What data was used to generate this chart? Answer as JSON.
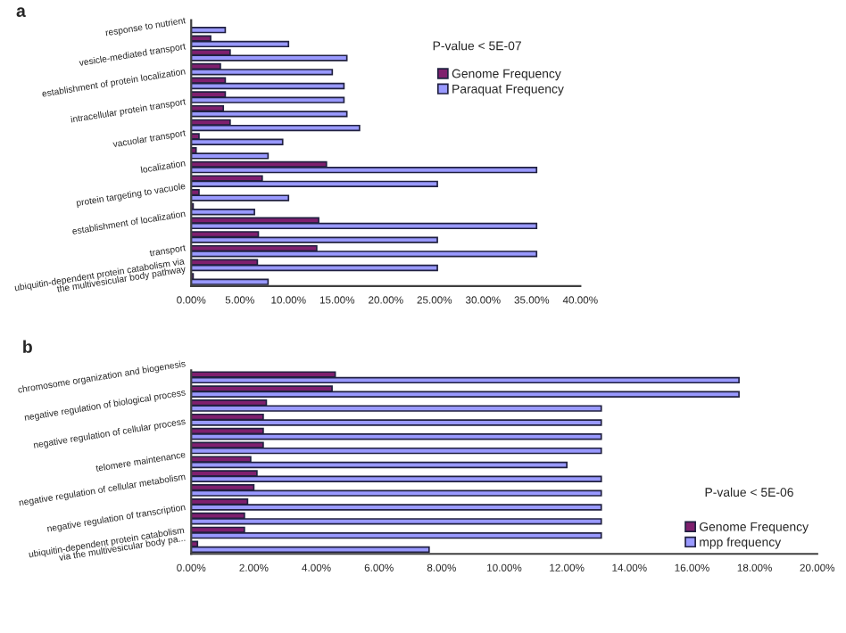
{
  "chart_data": [
    {
      "type": "bar",
      "orientation": "horizontal",
      "categories": [
        "response to nutrient",
        null,
        "vesicle-mediated transport",
        null,
        "establishment of protein localization",
        null,
        "intracellular protein transport",
        null,
        "vacuolar transport",
        null,
        "localization",
        null,
        "protein targeting to vacuole",
        null,
        "establishment of localization",
        null,
        "transport",
        null,
        "ubiquitin-dependent protein catabolism via\nthe multivesicular body pathway"
      ],
      "series": [
        {
          "name": "Genome Frequency",
          "color": "#7f1f6e",
          "values": [
            null,
            2.0,
            4.0,
            3.0,
            3.5,
            3.5,
            3.3,
            4.0,
            0.8,
            0.5,
            13.9,
            7.3,
            0.8,
            0.2,
            13.1,
            6.9,
            12.9,
            6.8,
            0.2
          ]
        },
        {
          "name": "Paraquat Frequency",
          "color": "#9999ff",
          "values": [
            3.5,
            10.0,
            16.0,
            14.5,
            15.7,
            15.7,
            16.0,
            17.3,
            9.4,
            7.9,
            35.5,
            25.3,
            10.0,
            6.5,
            35.5,
            25.3,
            35.5,
            25.3,
            7.9
          ]
        }
      ],
      "xlim": [
        0,
        40
      ],
      "xticks": [
        {
          "value": 0,
          "label": "0.00%"
        },
        {
          "value": 5,
          "label": "5.00%"
        },
        {
          "value": 10,
          "label": "10.00%"
        },
        {
          "value": 15,
          "label": "15.00%"
        },
        {
          "value": 20,
          "label": "20.00%"
        },
        {
          "value": 25,
          "label": "25.00%"
        },
        {
          "value": 30,
          "label": "30.00%"
        },
        {
          "value": 35,
          "label": "35.00%"
        },
        {
          "value": 40,
          "label": "40.00%"
        }
      ],
      "annotations": [
        "a",
        "P-value < 5E-07"
      ],
      "legend": "top right",
      "grid": false
    },
    {
      "type": "bar",
      "orientation": "horizontal",
      "categories": [
        "chromosome organization and biogenesis",
        null,
        "negative regulation of biological process",
        null,
        "negative regulation of cellular process",
        null,
        "telomere maintenance",
        null,
        "negative regulation of cellular metabolism",
        null,
        "negative regulation of transcription",
        null,
        "ubiquitin-dependent protein catabolism\nvia the multivesicular body pa..."
      ],
      "series": [
        {
          "name": "Genome Frequency",
          "color": "#7f1f6e",
          "values": [
            4.6,
            4.5,
            2.4,
            2.3,
            2.3,
            2.3,
            1.9,
            2.1,
            2.0,
            1.8,
            1.7,
            1.7,
            0.2
          ]
        },
        {
          "name": "mpp frequency",
          "color": "#9999ff",
          "values": [
            17.5,
            17.5,
            13.1,
            13.1,
            13.1,
            13.1,
            12.0,
            13.1,
            13.1,
            13.1,
            13.1,
            13.1,
            7.6
          ]
        }
      ],
      "xlim": [
        0,
        20
      ],
      "xticks": [
        {
          "value": 0,
          "label": "0.00%"
        },
        {
          "value": 2,
          "label": "2.00%"
        },
        {
          "value": 4,
          "label": "4.00%"
        },
        {
          "value": 6,
          "label": "6.00%"
        },
        {
          "value": 8,
          "label": "8.00%"
        },
        {
          "value": 10,
          "label": "10.00%"
        },
        {
          "value": 12,
          "label": "12.00%"
        },
        {
          "value": 14,
          "label": "14.00%"
        },
        {
          "value": 16,
          "label": "16.00%"
        },
        {
          "value": 18,
          "label": "18.00%"
        },
        {
          "value": 20,
          "label": "20.00%"
        }
      ],
      "annotations": [
        "b",
        "P-value < 5E-06"
      ],
      "legend": "bottom right",
      "grid": false
    }
  ]
}
